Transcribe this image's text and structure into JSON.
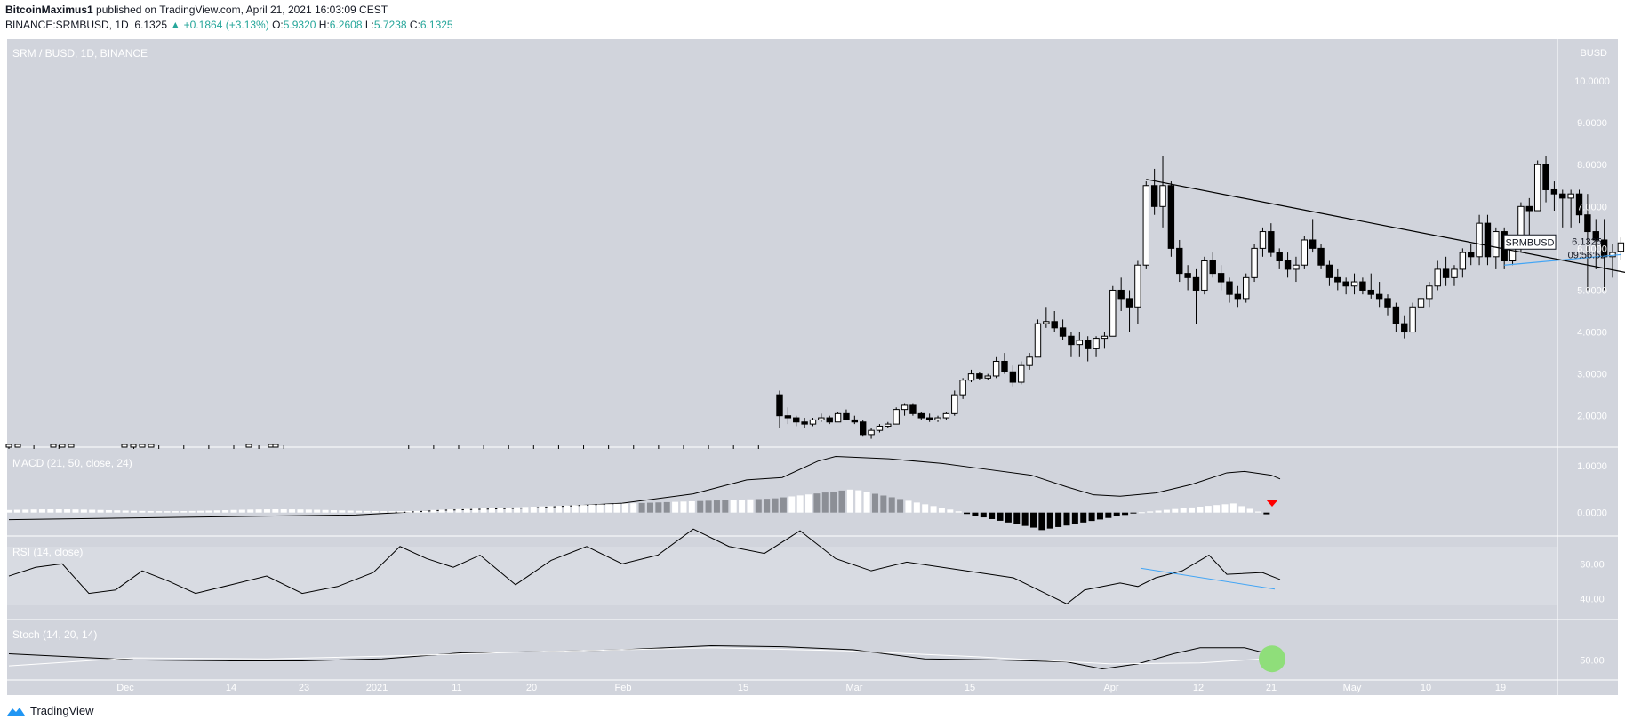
{
  "header": {
    "author": "BitcoinMaximus1",
    "published": "published on TradingView.com, April 21, 2021 16:03:09 CEST",
    "symbol_line": "BINANCE:SRMBUSD, 1D",
    "last": "6.1325",
    "change": "+0.1864 (+3.13%)",
    "open_label": "O:",
    "open": "5.9320",
    "high_label": "H:",
    "high": "6.2608",
    "low_label": "L:",
    "low": "5.7238",
    "close_label": "C:",
    "close": "6.1325"
  },
  "footer": {
    "brand": "TradingView"
  },
  "colors": {
    "panel_bg": "#d1d4dc",
    "line": "#000000",
    "teal": "#26a69a",
    "blue": "#42a5f5",
    "red": "#ff0000",
    "green": "#8fde7a"
  },
  "chart_data": {
    "type": "candlestick",
    "title": "SRM / BUSD, 1D, BINANCE",
    "currency_label": "BUSD",
    "price_tag": "SRMBUSD",
    "price_tag_value": "6.1325",
    "countdown": "09:56:52",
    "x_tick_labels": [
      "Dec",
      "14",
      "23",
      "2021",
      "11",
      "20",
      "Feb",
      "15",
      "Mar",
      "15",
      "Apr",
      "12",
      "21",
      "May",
      "10",
      "19"
    ],
    "price_axis": {
      "ticks": [
        "2.0000",
        "3.0000",
        "4.0000",
        "5.0000",
        "6.0000",
        "7.0000",
        "8.0000",
        "9.0000",
        "10.0000"
      ],
      "ylim": [
        1.25,
        11.0
      ]
    },
    "candles": [
      [
        2.5,
        2.6,
        1.7,
        2.0
      ],
      [
        2.0,
        2.2,
        1.8,
        1.95
      ],
      [
        1.95,
        2.0,
        1.75,
        1.85
      ],
      [
        1.85,
        1.95,
        1.7,
        1.8
      ],
      [
        1.8,
        1.95,
        1.75,
        1.9
      ],
      [
        1.9,
        2.05,
        1.85,
        1.95
      ],
      [
        1.95,
        2.0,
        1.8,
        1.85
      ],
      [
        1.85,
        2.1,
        1.85,
        2.05
      ],
      [
        2.05,
        2.15,
        1.9,
        1.9
      ],
      [
        1.9,
        2.0,
        1.8,
        1.85
      ],
      [
        1.85,
        1.9,
        1.5,
        1.55
      ],
      [
        1.55,
        1.7,
        1.45,
        1.65
      ],
      [
        1.65,
        1.8,
        1.6,
        1.75
      ],
      [
        1.75,
        1.85,
        1.7,
        1.8
      ],
      [
        1.8,
        2.2,
        1.8,
        2.15
      ],
      [
        2.15,
        2.3,
        2.0,
        2.25
      ],
      [
        2.25,
        2.3,
        2.0,
        2.05
      ],
      [
        2.05,
        2.1,
        1.9,
        1.95
      ],
      [
        1.95,
        2.05,
        1.85,
        1.9
      ],
      [
        1.9,
        2.0,
        1.85,
        1.95
      ],
      [
        1.95,
        2.1,
        1.9,
        2.05
      ],
      [
        2.05,
        2.6,
        2.0,
        2.5
      ],
      [
        2.5,
        2.9,
        2.4,
        2.85
      ],
      [
        2.85,
        3.1,
        2.8,
        3.0
      ],
      [
        3.0,
        3.05,
        2.85,
        2.9
      ],
      [
        2.9,
        3.0,
        2.85,
        2.95
      ],
      [
        2.95,
        3.4,
        2.9,
        3.3
      ],
      [
        3.3,
        3.5,
        3.0,
        3.05
      ],
      [
        3.05,
        3.2,
        2.7,
        2.8
      ],
      [
        2.8,
        3.3,
        2.75,
        3.2
      ],
      [
        3.2,
        3.5,
        3.1,
        3.4
      ],
      [
        3.4,
        4.3,
        3.4,
        4.2
      ],
      [
        4.2,
        4.6,
        4.1,
        4.25
      ],
      [
        4.25,
        4.5,
        4.0,
        4.1
      ],
      [
        4.1,
        4.3,
        3.8,
        3.9
      ],
      [
        3.9,
        4.0,
        3.4,
        3.7
      ],
      [
        3.7,
        4.0,
        3.4,
        3.8
      ],
      [
        3.8,
        3.9,
        3.3,
        3.6
      ],
      [
        3.6,
        3.9,
        3.4,
        3.85
      ],
      [
        3.85,
        4.0,
        3.6,
        3.9
      ],
      [
        3.9,
        5.1,
        3.9,
        5.0
      ],
      [
        5.0,
        5.3,
        4.5,
        4.8
      ],
      [
        4.8,
        5.0,
        4.0,
        4.6
      ],
      [
        4.6,
        5.7,
        4.2,
        5.6
      ],
      [
        5.6,
        7.6,
        5.5,
        7.5
      ],
      [
        7.5,
        7.9,
        6.8,
        7.0
      ],
      [
        7.0,
        8.2,
        6.5,
        7.5
      ],
      [
        7.5,
        7.6,
        5.8,
        6.0
      ],
      [
        6.0,
        6.2,
        5.2,
        5.4
      ],
      [
        5.4,
        5.6,
        5.0,
        5.3
      ],
      [
        5.3,
        5.5,
        4.2,
        5.0
      ],
      [
        5.0,
        5.8,
        4.9,
        5.7
      ],
      [
        5.7,
        5.9,
        5.3,
        5.4
      ],
      [
        5.4,
        5.6,
        5.0,
        5.2
      ],
      [
        5.2,
        5.3,
        4.7,
        4.9
      ],
      [
        4.9,
        5.1,
        4.6,
        4.8
      ],
      [
        4.8,
        5.4,
        4.7,
        5.3
      ],
      [
        5.3,
        6.1,
        5.2,
        6.0
      ],
      [
        6.0,
        6.5,
        5.8,
        6.4
      ],
      [
        6.4,
        6.6,
        5.8,
        5.9
      ],
      [
        5.9,
        6.0,
        5.5,
        5.7
      ],
      [
        5.7,
        5.9,
        5.3,
        5.5
      ],
      [
        5.5,
        5.8,
        5.2,
        5.6
      ],
      [
        5.6,
        6.3,
        5.5,
        6.2
      ],
      [
        6.2,
        6.7,
        5.9,
        6.0
      ],
      [
        6.0,
        6.1,
        5.5,
        5.6
      ],
      [
        5.6,
        5.7,
        5.1,
        5.3
      ],
      [
        5.3,
        5.5,
        5.0,
        5.2
      ],
      [
        5.2,
        5.3,
        4.9,
        5.1
      ],
      [
        5.1,
        5.4,
        4.9,
        5.2
      ],
      [
        5.2,
        5.3,
        4.9,
        5.0
      ],
      [
        5.0,
        5.4,
        4.8,
        4.9
      ],
      [
        4.9,
        5.2,
        4.6,
        4.8
      ],
      [
        4.8,
        4.9,
        4.4,
        4.6
      ],
      [
        4.6,
        4.7,
        4.0,
        4.2
      ],
      [
        4.2,
        4.4,
        3.85,
        4.0
      ],
      [
        4.0,
        4.7,
        4.0,
        4.6
      ],
      [
        4.6,
        4.9,
        4.5,
        4.8
      ],
      [
        4.8,
        5.2,
        4.6,
        5.1
      ],
      [
        5.1,
        5.7,
        5.0,
        5.5
      ],
      [
        5.5,
        5.8,
        5.1,
        5.3
      ],
      [
        5.3,
        5.6,
        5.1,
        5.5
      ],
      [
        5.5,
        6.0,
        5.3,
        5.9
      ],
      [
        5.9,
        6.1,
        5.6,
        5.8
      ],
      [
        5.8,
        6.8,
        5.6,
        6.6
      ],
      [
        6.6,
        6.8,
        5.6,
        5.8
      ],
      [
        5.8,
        6.5,
        5.5,
        6.4
      ],
      [
        6.4,
        6.5,
        5.5,
        5.7
      ],
      [
        5.7,
        6.1,
        5.6,
        6.0
      ],
      [
        6.0,
        7.1,
        5.9,
        7.0
      ],
      [
        7.0,
        7.2,
        6.3,
        6.9
      ],
      [
        6.9,
        8.1,
        6.9,
        8.0
      ],
      [
        8.0,
        8.2,
        7.1,
        7.4
      ],
      [
        7.4,
        7.6,
        6.9,
        7.3
      ],
      [
        7.3,
        7.4,
        6.5,
        7.2
      ],
      [
        7.2,
        7.4,
        6.5,
        7.3
      ],
      [
        7.3,
        7.4,
        6.6,
        6.8
      ],
      [
        6.8,
        7.3,
        5.0,
        6.4
      ],
      [
        6.4,
        6.7,
        5.5,
        6.2
      ],
      [
        6.2,
        6.7,
        5.0,
        5.8
      ],
      [
        5.8,
        6.1,
        5.3,
        5.9
      ],
      [
        5.93,
        6.26,
        5.72,
        6.13
      ]
    ],
    "trendlines": [
      {
        "name": "descending resistance",
        "from": [
          44,
          7.65
        ],
        "to": [
          119,
          4.75
        ]
      },
      {
        "name": "support",
        "from": [
          87,
          5.6
        ],
        "to": [
          101,
          5.85
        ]
      }
    ],
    "indicators": [
      {
        "name": "MACD",
        "label": "MACD (21, 50, close, 24)",
        "ylim": [
          -0.5,
          1.4
        ],
        "ticks": [
          "0.0000",
          "1.0000"
        ]
      },
      {
        "name": "RSI",
        "label": "RSI (14, close)",
        "ylim": [
          28,
          76
        ],
        "ticks": [
          "40.00",
          "60.00"
        ]
      },
      {
        "name": "Stoch",
        "label": "Stoch (14, 20, 14)",
        "ylim": [
          30,
          90
        ],
        "ticks": [
          "50.00"
        ]
      }
    ]
  }
}
